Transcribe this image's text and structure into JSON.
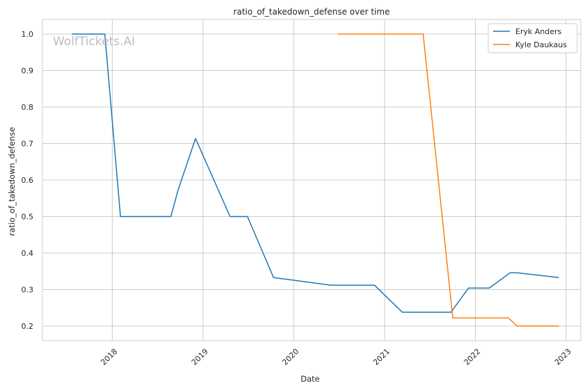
{
  "chart_data": {
    "type": "line",
    "title": "ratio_of_takedown_defense over time",
    "xlabel": "Date",
    "ylabel": "ratio_of_takedown_defense",
    "xlim": [
      "2017-03-26",
      "2023-03-01"
    ],
    "ylim": [
      0.16,
      1.04
    ],
    "x_ticks": [
      "2018-01-01",
      "2019-01-01",
      "2020-01-01",
      "2021-01-01",
      "2022-01-01",
      "2023-01-01"
    ],
    "x_tick_labels": [
      "2018",
      "2019",
      "2020",
      "2021",
      "2022",
      "2023"
    ],
    "y_ticks": [
      0.2,
      0.3,
      0.4,
      0.5,
      0.6,
      0.7,
      0.8,
      0.9,
      1.0
    ],
    "y_tick_labels": [
      "0.2",
      "0.3",
      "0.4",
      "0.5",
      "0.6",
      "0.7",
      "0.8",
      "0.9",
      "1.0"
    ],
    "grid": true,
    "legend_position": "top-right",
    "watermark": "WolfTickets.AI",
    "series": [
      {
        "name": "Eryk Anders",
        "color": "#1f77b4",
        "x": [
          "2017-07-22",
          "2017-12-02",
          "2018-02-03",
          "2018-08-25",
          "2018-09-22",
          "2018-12-02",
          "2019-04-20",
          "2019-06-29",
          "2019-10-12",
          "2020-05-30",
          "2020-11-21",
          "2021-03-13",
          "2021-09-25",
          "2021-12-04",
          "2022-02-26",
          "2022-05-21",
          "2022-06-18",
          "2022-12-03"
        ],
        "values": [
          1.0,
          1.0,
          0.5,
          0.5,
          0.571,
          0.714,
          0.5,
          0.5,
          0.333,
          0.312,
          0.312,
          0.238,
          0.238,
          0.304,
          0.304,
          0.346,
          0.346,
          0.333
        ]
      },
      {
        "name": "Kyle Daukaus",
        "color": "#ff7f0e",
        "x": [
          "2020-06-27",
          "2021-06-05",
          "2021-10-02",
          "2022-05-14",
          "2022-06-18",
          "2022-12-03"
        ],
        "values": [
          1.0,
          1.0,
          0.222,
          0.222,
          0.2,
          0.2
        ]
      }
    ]
  }
}
